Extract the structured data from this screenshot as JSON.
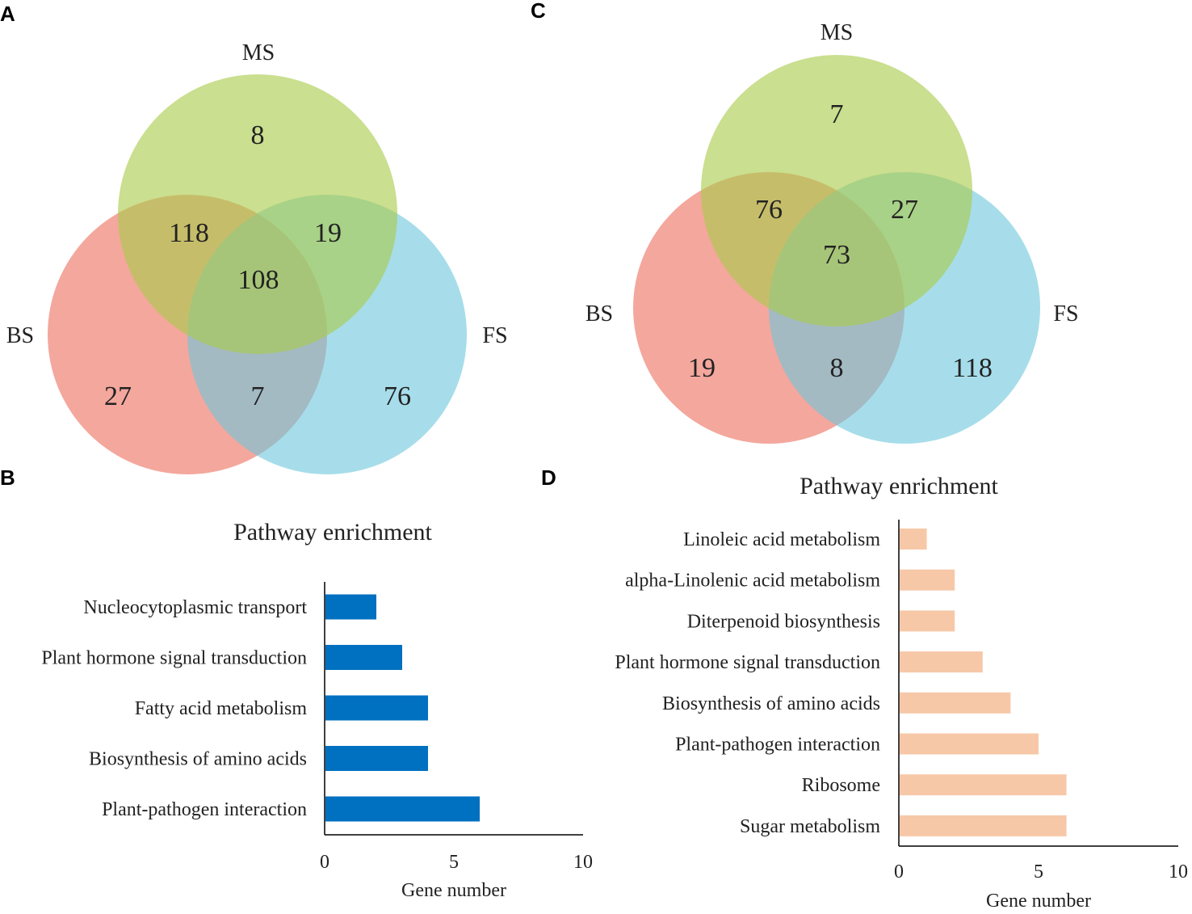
{
  "panels": {
    "A": "A",
    "B": "B",
    "C": "C",
    "D": "D"
  },
  "colors": {
    "bs": "#ef8273",
    "ms": "#a9cc4a",
    "fs": "#6cc6dc",
    "bar_b": "#0070c0",
    "bar_d": "#f7c8a8"
  },
  "chart_data": [
    {
      "panel": "A",
      "type": "venn",
      "sets": [
        "MS",
        "BS",
        "FS"
      ],
      "regions": {
        "MS_only": 8,
        "MS_BS": 118,
        "MS_FS": 19,
        "MS_BS_FS": 108,
        "BS_only": 27,
        "BS_FS": 7,
        "FS_only": 76
      }
    },
    {
      "panel": "B",
      "type": "bar",
      "orientation": "horizontal",
      "title": "Pathway enrichment",
      "categories": [
        "Nucleocytoplasmic transport",
        "Plant hormone signal transduction",
        "Fatty acid metabolism",
        "Biosynthesis of amino acids",
        "Plant-pathogen interaction"
      ],
      "values": [
        2,
        3,
        4,
        4,
        6
      ],
      "xlabel": "Gene number",
      "xlim": [
        0,
        10
      ],
      "xticks": [
        "0",
        "5",
        "10"
      ]
    },
    {
      "panel": "C",
      "type": "venn",
      "sets": [
        "MS",
        "BS",
        "FS"
      ],
      "regions": {
        "MS_only": 7,
        "MS_BS": 76,
        "MS_FS": 27,
        "MS_BS_FS": 73,
        "BS_only": 19,
        "BS_FS": 8,
        "FS_only": 118
      }
    },
    {
      "panel": "D",
      "type": "bar",
      "orientation": "horizontal",
      "title": "Pathway enrichment",
      "categories": [
        "Linoleic acid metabolism",
        "alpha-Linolenic acid metabolism",
        "Diterpenoid biosynthesis",
        "Plant hormone signal transduction",
        "Biosynthesis of amino acids",
        "Plant-pathogen interaction",
        "Ribosome",
        "Sugar metabolism"
      ],
      "values": [
        1,
        2,
        2,
        3,
        4,
        5,
        6,
        6
      ],
      "xlabel": "Gene number",
      "xlim": [
        0,
        10
      ],
      "xticks": [
        "0",
        "5",
        "10"
      ]
    }
  ]
}
